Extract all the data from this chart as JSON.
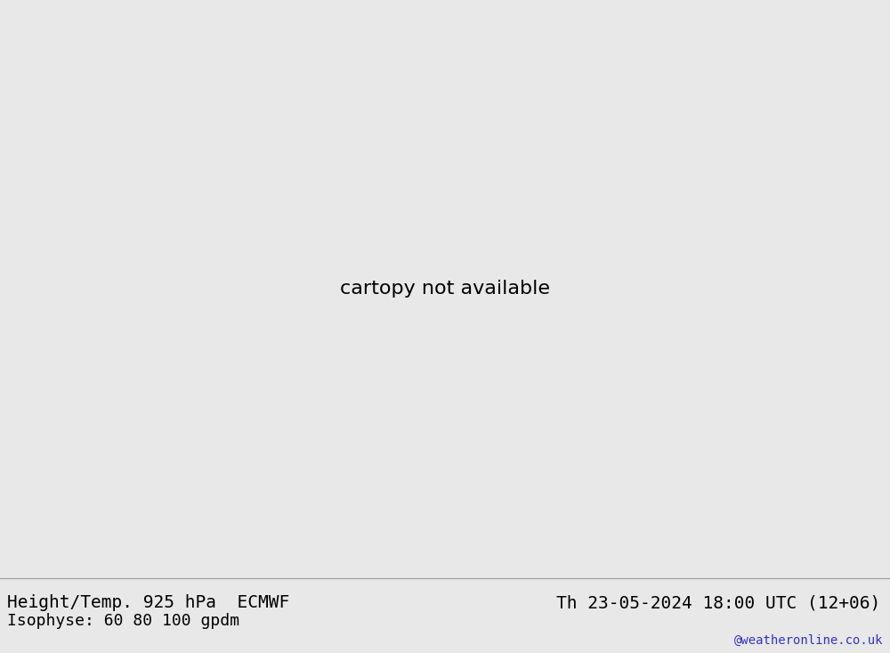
{
  "title_left": "Height/Temp. 925 hPa  ECMWF",
  "title_right": "Th 23-05-2024 18:00 UTC (12+06)",
  "subtitle_left": "Isophyse: 60 80 100 gpdm",
  "watermark": "@weatheronline.co.uk",
  "land_color": "#c8f0c0",
  "ocean_color": "#e8e8e8",
  "border_color": "#aaaaaa",
  "text_color": "#000000",
  "watermark_color": "#3333cc",
  "bottom_bar_color": "#e8e8e8",
  "font_size_title": 14,
  "font_size_subtitle": 13,
  "font_size_watermark": 10,
  "map_extent": [
    -60,
    60,
    20,
    75
  ],
  "ensemble_colors": [
    "#000000",
    "#ff0000",
    "#0000ff",
    "#00aa00",
    "#ff8800",
    "#aa00aa",
    "#00aaaa",
    "#cc6600",
    "#0066cc",
    "#cc0066",
    "#ff4400",
    "#4400ff",
    "#008800",
    "#880000",
    "#006688",
    "#884400",
    "#448800",
    "#004488",
    "#880044",
    "#448844"
  ]
}
